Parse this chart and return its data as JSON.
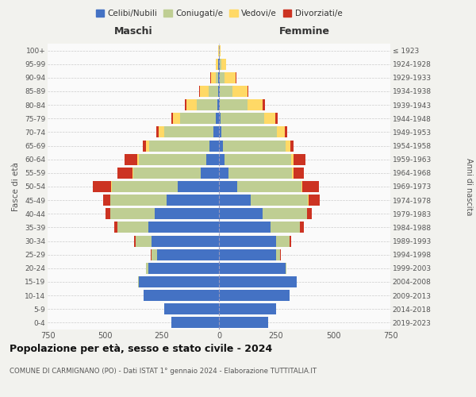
{
  "age_groups": [
    "0-4",
    "5-9",
    "10-14",
    "15-19",
    "20-24",
    "25-29",
    "30-34",
    "35-39",
    "40-44",
    "45-49",
    "50-54",
    "55-59",
    "60-64",
    "65-69",
    "70-74",
    "75-79",
    "80-84",
    "85-89",
    "90-94",
    "95-99",
    "100+"
  ],
  "birth_years": [
    "2019-2023",
    "2014-2018",
    "2009-2013",
    "2004-2008",
    "1999-2003",
    "1994-1998",
    "1989-1993",
    "1984-1988",
    "1979-1983",
    "1974-1978",
    "1969-1973",
    "1964-1968",
    "1959-1963",
    "1954-1958",
    "1949-1953",
    "1944-1948",
    "1939-1943",
    "1934-1938",
    "1929-1933",
    "1924-1928",
    "≤ 1923"
  ],
  "colors": {
    "celibi": "#4472C4",
    "coniugati": "#BFCE93",
    "vedovi": "#FFD966",
    "divorziati": "#CC3322"
  },
  "maschi": {
    "celibi": [
      210,
      240,
      330,
      350,
      310,
      270,
      295,
      310,
      280,
      230,
      180,
      80,
      55,
      40,
      25,
      15,
      8,
      5,
      3,
      2,
      0
    ],
    "coniugati": [
      0,
      0,
      0,
      3,
      8,
      25,
      70,
      135,
      195,
      245,
      290,
      295,
      295,
      265,
      215,
      155,
      90,
      40,
      12,
      3,
      0
    ],
    "vedovi": [
      0,
      0,
      0,
      0,
      0,
      0,
      0,
      0,
      0,
      2,
      3,
      5,
      8,
      15,
      25,
      30,
      45,
      40,
      20,
      8,
      2
    ],
    "divorziati": [
      0,
      0,
      0,
      0,
      0,
      2,
      8,
      15,
      20,
      30,
      80,
      65,
      55,
      15,
      10,
      8,
      5,
      3,
      2,
      0,
      0
    ]
  },
  "femmine": {
    "celibi": [
      215,
      250,
      310,
      340,
      290,
      250,
      250,
      225,
      190,
      140,
      80,
      40,
      25,
      18,
      12,
      8,
      5,
      5,
      3,
      2,
      0
    ],
    "coniugati": [
      0,
      0,
      0,
      2,
      5,
      18,
      60,
      130,
      195,
      250,
      280,
      280,
      290,
      275,
      240,
      190,
      120,
      55,
      20,
      8,
      2
    ],
    "vedovi": [
      0,
      0,
      0,
      0,
      0,
      0,
      0,
      0,
      2,
      2,
      3,
      5,
      10,
      20,
      35,
      50,
      65,
      65,
      50,
      20,
      5
    ],
    "divorziati": [
      0,
      0,
      0,
      0,
      0,
      2,
      5,
      15,
      20,
      50,
      75,
      45,
      55,
      12,
      12,
      10,
      10,
      5,
      2,
      0,
      0
    ]
  },
  "xlim": 750,
  "title": "Popolazione per età, sesso e stato civile - 2024",
  "subtitle": "COMUNE DI CARMIGNANO (PO) - Dati ISTAT 1° gennaio 2024 - Elaborazione TUTTITALIA.IT",
  "legend_labels": [
    "Celibi/Nubili",
    "Coniugati/e",
    "Vedovi/e",
    "Divorziati/e"
  ],
  "xlabel_maschi": "Maschi",
  "xlabel_femmine": "Femmine",
  "ylabel": "Fasce di età",
  "ylabel_right": "Anni di nascita",
  "bg_color": "#F2F2EE",
  "bar_bg_color": "#FAFAFA"
}
